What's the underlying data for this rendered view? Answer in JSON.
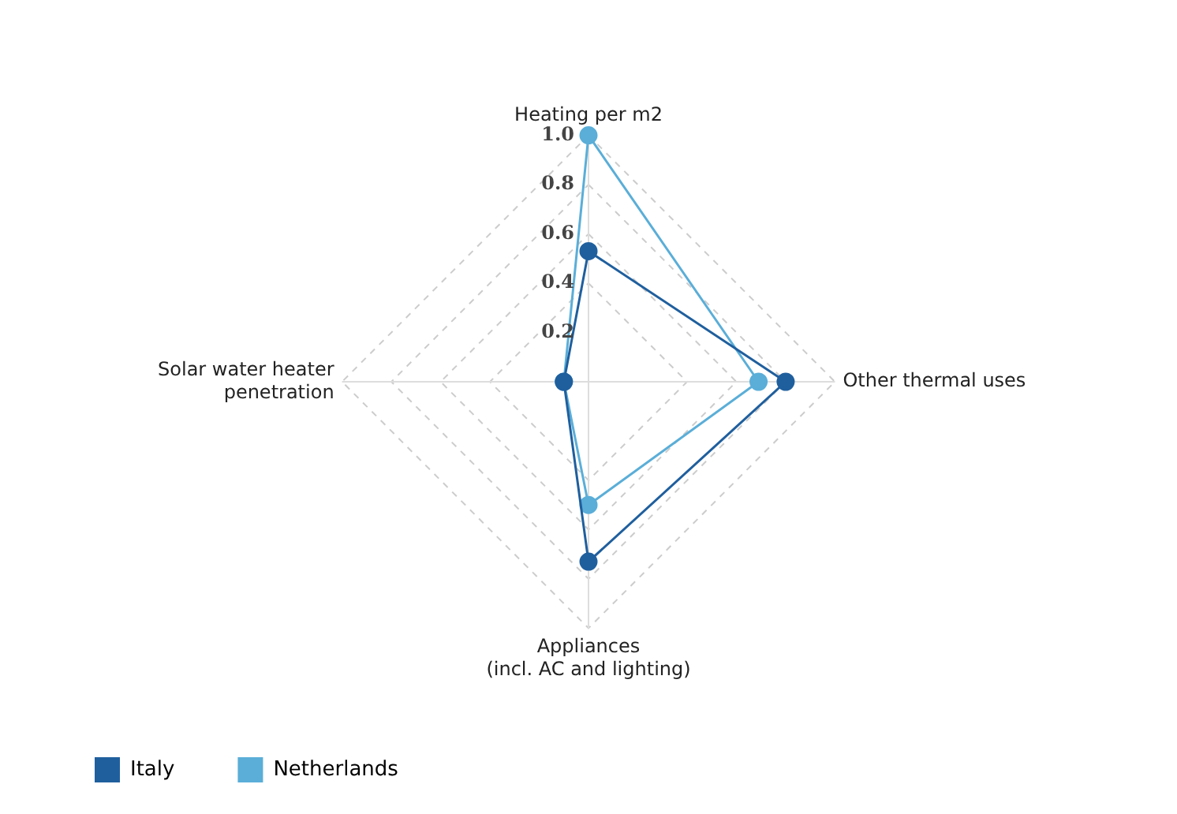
{
  "chart_data": {
    "type": "radar",
    "categories": [
      "Heating per m2",
      "Other thermal uses",
      "Appliances\n(incl. AC and lighting)",
      "Solar water heater\npenetration"
    ],
    "series": [
      {
        "name": "Italy",
        "color": "#1f5f9e",
        "values": [
          0.53,
          0.8,
          0.73,
          0.1
        ]
      },
      {
        "name": "Netherlands",
        "color": "#5aaed8",
        "values": [
          1.0,
          0.69,
          0.5,
          0.1
        ]
      }
    ],
    "ylim": [
      0,
      1
    ],
    "yticks": [
      {
        "value": 0.2,
        "label": "0.2"
      },
      {
        "value": 0.4,
        "label": "0.4"
      },
      {
        "value": 0.6,
        "label": "0.6"
      },
      {
        "value": 0.8,
        "label": "0.8"
      },
      {
        "value": 1,
        "label": "1.0"
      }
    ],
    "grid": true,
    "legend": "bottom left",
    "marker": "circle",
    "line_style": "solid"
  }
}
